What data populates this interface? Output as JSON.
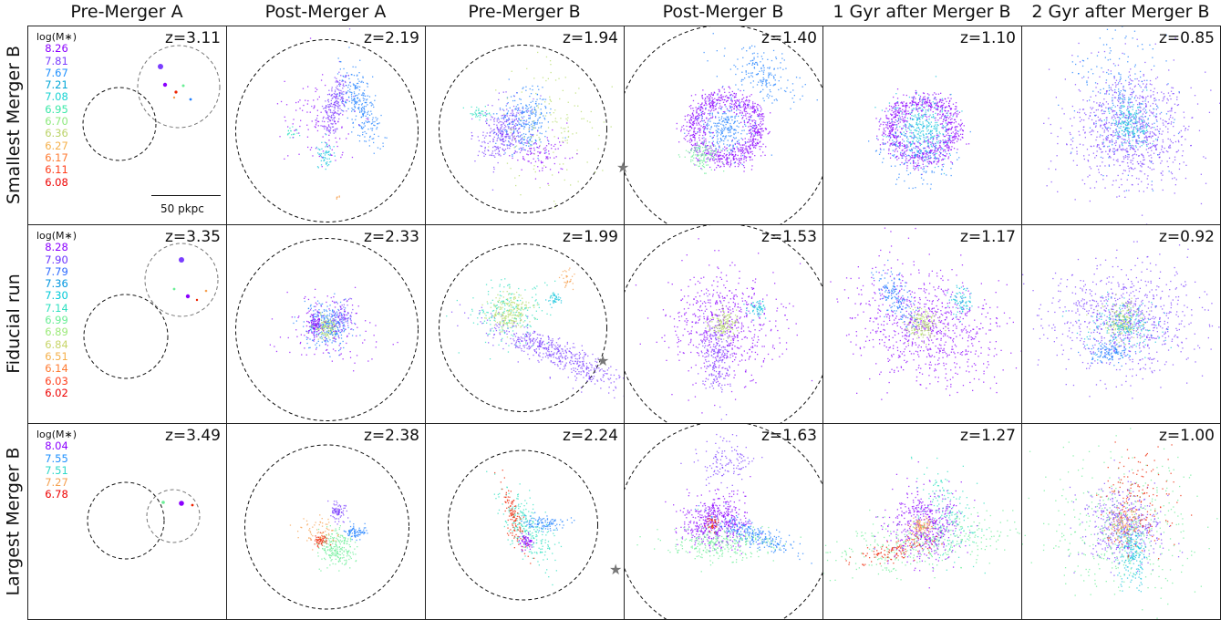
{
  "columns": [
    "Pre-Merger A",
    "Post-Merger A",
    "Pre-Merger B",
    "Post-Merger B",
    "1 Gyr after Merger B",
    "2 Gyr after Merger B"
  ],
  "rows": [
    {
      "label": "Smallest Merger B",
      "redshifts": [
        "z=3.11",
        "z=2.19",
        "z=1.94",
        "z=1.40",
        "z=1.10",
        "z=0.85"
      ],
      "legend_header": "log(M∗)",
      "legend": [
        {
          "value": "8.26",
          "color": "#8b00ff"
        },
        {
          "value": "7.81",
          "color": "#7a3dff"
        },
        {
          "value": "7.67",
          "color": "#1e90ff"
        },
        {
          "value": "7.21",
          "color": "#00a6d6"
        },
        {
          "value": "7.08",
          "color": "#17d2d2"
        },
        {
          "value": "6.95",
          "color": "#3ae8a8"
        },
        {
          "value": "6.70",
          "color": "#8eea7e"
        },
        {
          "value": "6.36",
          "color": "#bcd36a"
        },
        {
          "value": "6.27",
          "color": "#f5b04a"
        },
        {
          "value": "6.17",
          "color": "#ff7a30"
        },
        {
          "value": "6.11",
          "color": "#ff3d1a"
        },
        {
          "value": "6.08",
          "color": "#ee0000"
        }
      ],
      "scale_label": "50 pkpc"
    },
    {
      "label": "Fiducial run",
      "redshifts": [
        "z=3.35",
        "z=2.33",
        "z=1.99",
        "z=1.53",
        "z=1.17",
        "z=0.92"
      ],
      "legend_header": "log(M∗)",
      "legend": [
        {
          "value": "8.28",
          "color": "#8b00ff"
        },
        {
          "value": "7.90",
          "color": "#6a33ff"
        },
        {
          "value": "7.79",
          "color": "#2f6bff"
        },
        {
          "value": "7.36",
          "color": "#0096e0"
        },
        {
          "value": "7.30",
          "color": "#00c8d8"
        },
        {
          "value": "7.14",
          "color": "#2fe0c0"
        },
        {
          "value": "6.99",
          "color": "#6aee96"
        },
        {
          "value": "6.89",
          "color": "#9cea7a"
        },
        {
          "value": "6.84",
          "color": "#c8d56a"
        },
        {
          "value": "6.51",
          "color": "#f5b04a"
        },
        {
          "value": "6.14",
          "color": "#ff7a30"
        },
        {
          "value": "6.03",
          "color": "#ff3d1a"
        },
        {
          "value": "6.02",
          "color": "#ee0000"
        }
      ]
    },
    {
      "label": "Largest Merger B",
      "redshifts": [
        "z=3.49",
        "z=2.38",
        "z=2.24",
        "z=1.63",
        "z=1.27",
        "z=1.00"
      ],
      "legend_header": "log(M∗)",
      "legend": [
        {
          "value": "8.04",
          "color": "#8b00ff"
        },
        {
          "value": "7.55",
          "color": "#1e90ff"
        },
        {
          "value": "7.51",
          "color": "#2fd8c8"
        },
        {
          "value": "7.27",
          "color": "#f5a050"
        },
        {
          "value": "6.78",
          "color": "#ee0000"
        }
      ]
    }
  ],
  "star_symbol": "★"
}
